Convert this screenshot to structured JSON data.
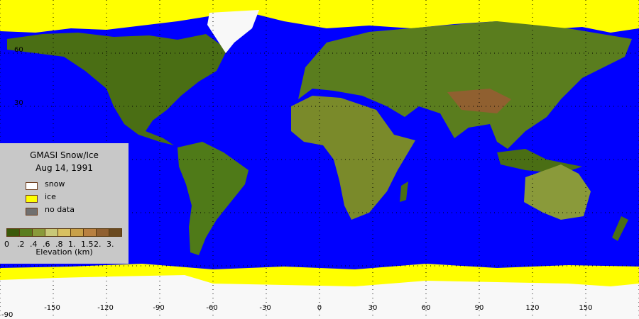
{
  "legend": {
    "title": "GMASI Snow/Ice",
    "date": "Aug 14, 1991",
    "items": [
      {
        "label": "snow",
        "color": "#ffffff"
      },
      {
        "label": "ice",
        "color": "#ffff00"
      },
      {
        "label": "no data",
        "color": "#707070"
      }
    ],
    "elevation_colors": [
      "#3b5a0a",
      "#5a7d1e",
      "#8a9a3a",
      "#c8c878",
      "#d8c060",
      "#c8a048",
      "#b88040",
      "#906030",
      "#6a4a20"
    ],
    "elevation_ticks": [
      "0",
      ".2",
      ".4",
      ".6",
      ".8",
      "1.",
      "1.5",
      "2.",
      "3."
    ],
    "elevation_label": "Elevation (km)"
  },
  "axes": {
    "lon_ticks": [
      "-150",
      "-120",
      "-90",
      "-60",
      "-30",
      "0",
      "30",
      "60",
      "90",
      "120",
      "150"
    ],
    "lat_ticks": [
      "60",
      "30",
      "-90"
    ]
  },
  "colors": {
    "ocean": "#0000ff",
    "ice": "#ffff00",
    "snow": "#ffffff",
    "land": "#4a6e14"
  }
}
